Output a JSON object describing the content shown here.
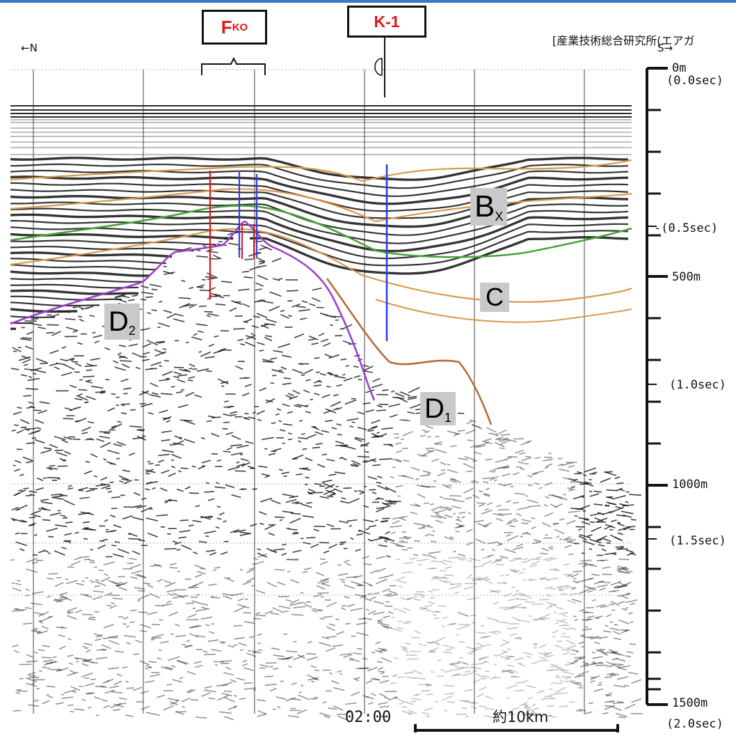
{
  "header": {
    "credit": "[産業技術総合研究所(エアガ",
    "fault_label_main": "F",
    "fault_label_sub": "KO",
    "borehole_label": "K-1",
    "north": "←N",
    "south": "S→"
  },
  "horizons": {
    "bx_main": "B",
    "bx_sub": "X",
    "c": "C",
    "d1_main": "D",
    "d1_sub": "1",
    "d2_main": "D",
    "d2_sub": "2"
  },
  "depth_scale": {
    "labels": [
      {
        "text": "0m",
        "key": "0m"
      },
      {
        "text": "(0.0sec)",
        "key": "0.0sec"
      },
      {
        "text": "-(0.5sec)",
        "key": "0.5sec"
      },
      {
        "text": "500m",
        "key": "500m"
      },
      {
        "text": "(1.0sec)",
        "key": "1.0sec"
      },
      {
        "text": "1000m",
        "key": "1000m"
      },
      {
        "text": "(1.5sec)",
        "key": "1.5sec"
      },
      {
        "text": "1500m",
        "key": "1500m"
      },
      {
        "text": "(2.0sec)",
        "key": "2.0sec"
      }
    ]
  },
  "bottom": {
    "time": "02:00",
    "scale_bar": "約10km"
  },
  "colors": {
    "horizon_orange": "#d99a4c",
    "horizon_green": "#4aa23a",
    "horizon_purple": "#9b3fd0",
    "horizon_brown": "#b5693a",
    "fault_red": "#e41616",
    "fault_blue": "#2f3fe0",
    "label_red": "#e41616"
  }
}
